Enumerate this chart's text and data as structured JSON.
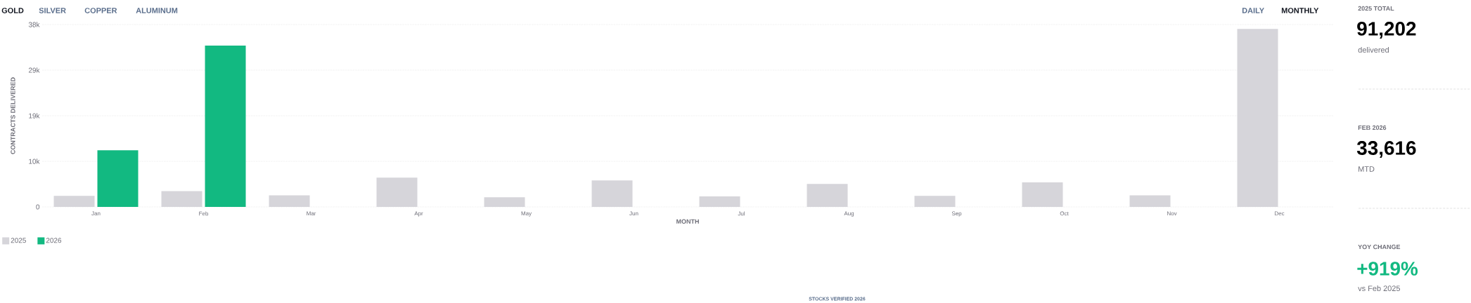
{
  "chart_data": {
    "type": "bar",
    "xlabel": "MONTH",
    "ylabel": "CONTRACTS DELIVERED",
    "categories": [
      "Jan",
      "Feb",
      "Mar",
      "Apr",
      "May",
      "Jun",
      "Jul",
      "Aug",
      "Sep",
      "Oct",
      "Nov",
      "Dec"
    ],
    "series": [
      {
        "name": "2025",
        "color": "#d6d5da",
        "values": [
          2300,
          3300,
          2400,
          6100,
          2000,
          5500,
          2200,
          4800,
          2300,
          5100,
          2400,
          37100
        ]
      },
      {
        "name": "2026",
        "color": "#12b981",
        "values": [
          11800,
          33600,
          null,
          null,
          null,
          null,
          null,
          null,
          null,
          null,
          null,
          null
        ]
      }
    ],
    "ylim": [
      0,
      38000
    ],
    "yticks": [
      {
        "value": 0,
        "label": "0"
      },
      {
        "value": 9500,
        "label": "10k"
      },
      {
        "value": 19000,
        "label": "19k"
      },
      {
        "value": 28500,
        "label": "29k"
      },
      {
        "value": 38000,
        "label": "38k"
      }
    ],
    "grid": "y",
    "legend": "bottom left",
    "annotations": [
      "GOLD",
      "SILVER",
      "COPPER",
      "ALUMINUM",
      "DAILY",
      "MONTHLY",
      "2025 TOTAL",
      "91,202",
      "delivered",
      "FEB 2026",
      "33,616",
      "MTD",
      "YOY CHANGE",
      "+919%",
      "vs Feb 2025",
      "STOCKS VERIFIED 2026"
    ]
  }
}
